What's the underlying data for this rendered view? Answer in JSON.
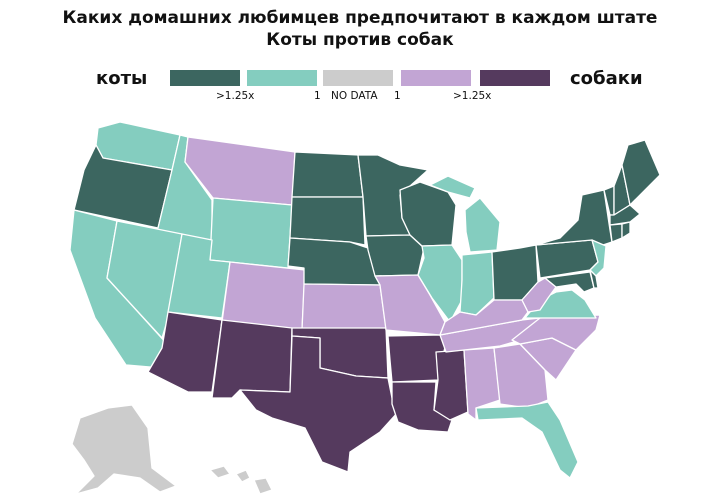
{
  "title_line1": "Каких домашних любимцев предпочитают в каждом штате",
  "title_line2": "Коты против собак",
  "legend": {
    "left_word": "коты",
    "right_word": "собаки",
    "labels": {
      "cats_strong": ">1.25x",
      "cats_one": "1",
      "no_data": "NO DATA",
      "dogs_one": "1",
      "dogs_strong": ">1.25x"
    },
    "categories": [
      {
        "key": "cats_strong",
        "color": "#3c6660"
      },
      {
        "key": "cats",
        "color": "#84cdbf"
      },
      {
        "key": "no_data",
        "color": "#cccccc"
      },
      {
        "key": "dogs",
        "color": "#c2a5d4"
      },
      {
        "key": "dogs_strong",
        "color": "#553a5e"
      }
    ]
  },
  "state_categories": {
    "cats_strong": [
      "OR",
      "ND",
      "SD",
      "NE",
      "MN",
      "IA",
      "WI",
      "OH",
      "PA",
      "NY",
      "VT",
      "NH",
      "ME",
      "MA",
      "CT",
      "RI",
      "MD",
      "DE"
    ],
    "cats": [
      "WA",
      "ID",
      "WY",
      "CA",
      "NV",
      "UT",
      "IL",
      "IN",
      "MI",
      "VA",
      "NJ",
      "FL"
    ],
    "dogs": [
      "MT",
      "CO",
      "KS",
      "MO",
      "KY",
      "WV",
      "TN",
      "NC",
      "SC",
      "GA",
      "AL"
    ],
    "dogs_strong": [
      "AZ",
      "NM",
      "OK",
      "TX",
      "AR",
      "LA",
      "MS"
    ],
    "no_data": [
      "AK",
      "HI"
    ]
  }
}
